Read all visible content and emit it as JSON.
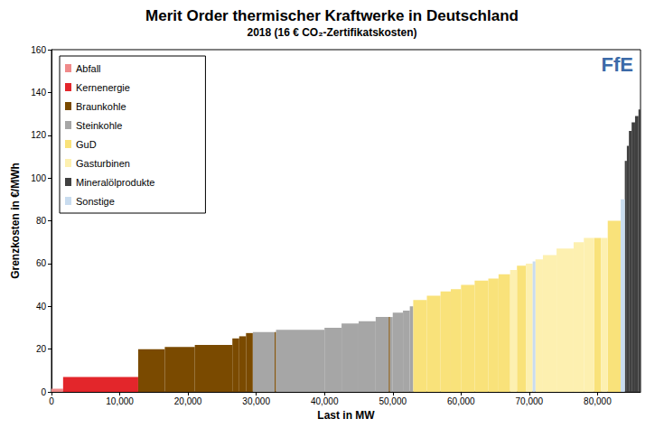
{
  "chart_data": {
    "type": "merit_order",
    "title": "Merit Order thermischer Kraftwerke in Deutschland",
    "subtitle": "2018 (16 € CO₂-Zertifikatskosten)",
    "logo": "FfE",
    "x_label": "Last in MW",
    "y_label": "Grenzkosten in €/MWh",
    "xlim": [
      0,
      86300
    ],
    "xticks": [
      0,
      {
        "value": 10000,
        "label": "10,000"
      },
      {
        "value": 20000,
        "label": "20,000"
      },
      {
        "value": 30000,
        "label": "30,000"
      },
      {
        "value": 40000,
        "label": "40,000"
      },
      {
        "value": 50000,
        "label": "50,000"
      },
      {
        "value": 60000,
        "label": "60,000"
      },
      {
        "value": 70000,
        "label": "70,000"
      },
      {
        "value": 80000,
        "label": "80,000"
      }
    ],
    "ylim": [
      0,
      160
    ],
    "yticks": [
      0,
      20,
      40,
      60,
      80,
      100,
      120,
      140,
      160
    ],
    "grid": false,
    "legend": "upper left",
    "series": [
      {
        "name": "Abfall",
        "color": "#f08a8a",
        "x0": [
          0
        ],
        "x1": [
          1700
        ],
        "values": [
          1.5
        ]
      },
      {
        "name": "Kernenergie",
        "color": "#e3262b",
        "x0": [
          1700
        ],
        "x1": [
          12700
        ],
        "values": [
          7
        ]
      },
      {
        "name": "Braunkohle",
        "color": "#7a4a00",
        "x0": [
          12700,
          16600,
          21000,
          26500,
          27500,
          28500,
          32700,
          49400
        ],
        "x1": [
          16600,
          21000,
          26500,
          27500,
          28500,
          29500,
          32900,
          49600
        ],
        "values": [
          20,
          21,
          22,
          25,
          26,
          27.5,
          28,
          35
        ]
      },
      {
        "name": "Steinkohle",
        "color": "#a6a6a6",
        "x0": [
          29500,
          32900,
          40000,
          42500,
          45000,
          47500,
          49600,
          50000,
          51500,
          52500
        ],
        "x1": [
          32700,
          40000,
          42500,
          45000,
          47500,
          49400,
          50000,
          51500,
          52500,
          53000
        ],
        "values": [
          28,
          29,
          30,
          32,
          33,
          35,
          35,
          37,
          38,
          40
        ]
      },
      {
        "name": "GuD",
        "color": "#f9e27a",
        "x0": [
          53000,
          55000,
          57000,
          58500,
          60000,
          62000,
          64000,
          65500,
          68200,
          79500,
          81500
        ],
        "x1": [
          55000,
          57000,
          58500,
          60000,
          62000,
          64000,
          65500,
          67200,
          69500,
          80500,
          83400
        ],
        "values": [
          43,
          45,
          47,
          48,
          50,
          52,
          53,
          55,
          59,
          72,
          80
        ]
      },
      {
        "name": "Gasturbinen",
        "color": "#fdf0b0",
        "x0": [
          67200,
          69500,
          70900,
          72000,
          74000,
          76500,
          78000,
          80500
        ],
        "x1": [
          68200,
          70500,
          72000,
          74000,
          76500,
          78000,
          79500,
          81500
        ],
        "values": [
          57,
          60,
          62,
          64,
          67,
          70,
          72,
          72
        ]
      },
      {
        "name": "Mineralölprodukte",
        "color": "#404040",
        "x0": [
          84000,
          84300,
          84600,
          85000,
          85500,
          86000
        ],
        "x1": [
          84300,
          84600,
          85000,
          85500,
          86000,
          86300
        ],
        "values": [
          108,
          115,
          122,
          126,
          129,
          132
        ]
      },
      {
        "name": "Sonstige",
        "color": "#c9dcef",
        "x0": [
          70500,
          83400
        ],
        "x1": [
          70900,
          84000
        ],
        "values": [
          61,
          90
        ]
      }
    ]
  }
}
